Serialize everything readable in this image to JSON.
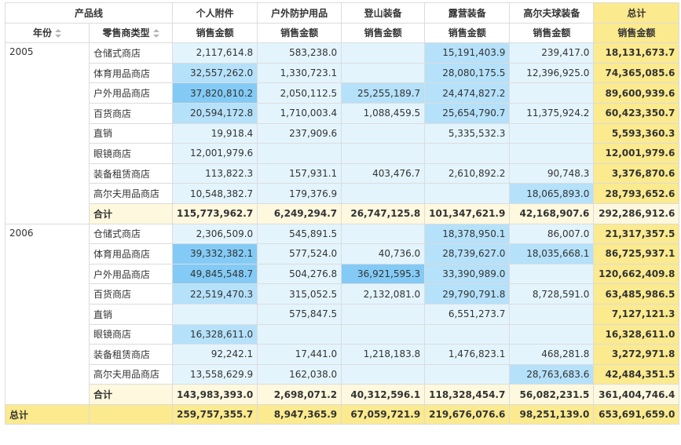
{
  "header": {
    "product_line_label": "产品线",
    "year_label": "年份",
    "retailer_type_label": "零售商类型",
    "measure_label": "销售金额",
    "total_label": "总计",
    "columns": [
      "个人附件",
      "户外防护用品",
      "登山装备",
      "露营装备",
      "高尔夫球装备"
    ]
  },
  "groups": [
    {
      "year": "2005",
      "rows": [
        {
          "type": "仓储式商店",
          "values": [
            "2,117,614.8",
            "583,238.0",
            "",
            "15,191,403.9",
            "239,417.0"
          ],
          "total": "18,131,673.7"
        },
        {
          "type": "体育用品商店",
          "values": [
            "32,557,262.0",
            "1,330,723.1",
            "",
            "28,080,175.5",
            "12,396,925.0"
          ],
          "total": "74,365,085.6"
        },
        {
          "type": "户外用品商店",
          "values": [
            "37,820,810.2",
            "2,050,112.5",
            "25,255,189.7",
            "24,474,827.2",
            ""
          ],
          "total": "89,600,939.6"
        },
        {
          "type": "百货商店",
          "values": [
            "20,594,172.8",
            "1,710,003.4",
            "1,088,459.5",
            "25,654,790.7",
            "11,375,924.2"
          ],
          "total": "60,423,350.7"
        },
        {
          "type": "直销",
          "values": [
            "19,918.4",
            "237,909.6",
            "",
            "5,335,532.3",
            ""
          ],
          "total": "5,593,360.3"
        },
        {
          "type": "眼镜商店",
          "values": [
            "12,001,979.6",
            "",
            "",
            "",
            ""
          ],
          "total": "12,001,979.6"
        },
        {
          "type": "装备租赁商店",
          "values": [
            "113,822.3",
            "157,931.1",
            "403,476.7",
            "2,610,892.2",
            "90,748.3"
          ],
          "total": "3,376,870.6"
        },
        {
          "type": "高尔夫用品商店",
          "values": [
            "10,548,382.7",
            "179,376.9",
            "",
            "",
            "18,065,893.0"
          ],
          "total": "28,793,652.6"
        }
      ],
      "subtotal_label": "合计",
      "subtotal": [
        "115,773,962.7",
        "6,249,294.7",
        "26,747,125.8",
        "101,347,621.9",
        "42,168,907.6"
      ],
      "subtotal_total": "292,286,912.6"
    },
    {
      "year": "2006",
      "rows": [
        {
          "type": "仓储式商店",
          "values": [
            "2,306,509.0",
            "545,891.5",
            "",
            "18,378,950.1",
            "86,007.0"
          ],
          "total": "21,317,357.5"
        },
        {
          "type": "体育用品商店",
          "values": [
            "39,332,382.1",
            "577,524.0",
            "40,736.0",
            "28,739,627.0",
            "18,035,668.1"
          ],
          "total": "86,725,937.1"
        },
        {
          "type": "户外用品商店",
          "values": [
            "49,845,548.7",
            "504,276.8",
            "36,921,595.3",
            "33,390,989.0",
            ""
          ],
          "total": "120,662,409.8"
        },
        {
          "type": "百货商店",
          "values": [
            "22,519,470.3",
            "315,052.5",
            "2,132,081.0",
            "29,790,791.8",
            "8,728,591.0"
          ],
          "total": "63,485,986.5"
        },
        {
          "type": "直销",
          "values": [
            "",
            "575,847.5",
            "",
            "6,551,273.7",
            ""
          ],
          "total": "7,127,121.3"
        },
        {
          "type": "眼镜商店",
          "values": [
            "16,328,611.0",
            "",
            "",
            "",
            ""
          ],
          "total": "16,328,611.0"
        },
        {
          "type": "装备租赁商店",
          "values": [
            "92,242.1",
            "17,441.0",
            "1,218,183.8",
            "1,476,823.1",
            "468,281.8"
          ],
          "total": "3,272,971.8"
        },
        {
          "type": "高尔夫用品商店",
          "values": [
            "13,558,629.9",
            "162,038.0",
            "",
            "",
            "28,763,683.6"
          ],
          "total": "42,484,351.5"
        }
      ],
      "subtotal_label": "合计",
      "subtotal": [
        "143,983,393.0",
        "2,698,071.2",
        "40,312,596.1",
        "118,328,454.7",
        "56,082,231.5"
      ],
      "subtotal_total": "361,404,746.4"
    }
  ],
  "grand_total": {
    "label": "总计",
    "values": [
      "259,757,355.7",
      "8,947,365.9",
      "67,059,721.9",
      "219,676,076.6",
      "98,251,139.0"
    ],
    "total": "653,691,659.0"
  },
  "colors": {
    "heat_low": "#e3f4fd",
    "heat_mid": "#b5e1fa",
    "heat_high": "#83cbf6",
    "total_column": "#fbea8e",
    "subtotal_row": "#fdf8de"
  }
}
